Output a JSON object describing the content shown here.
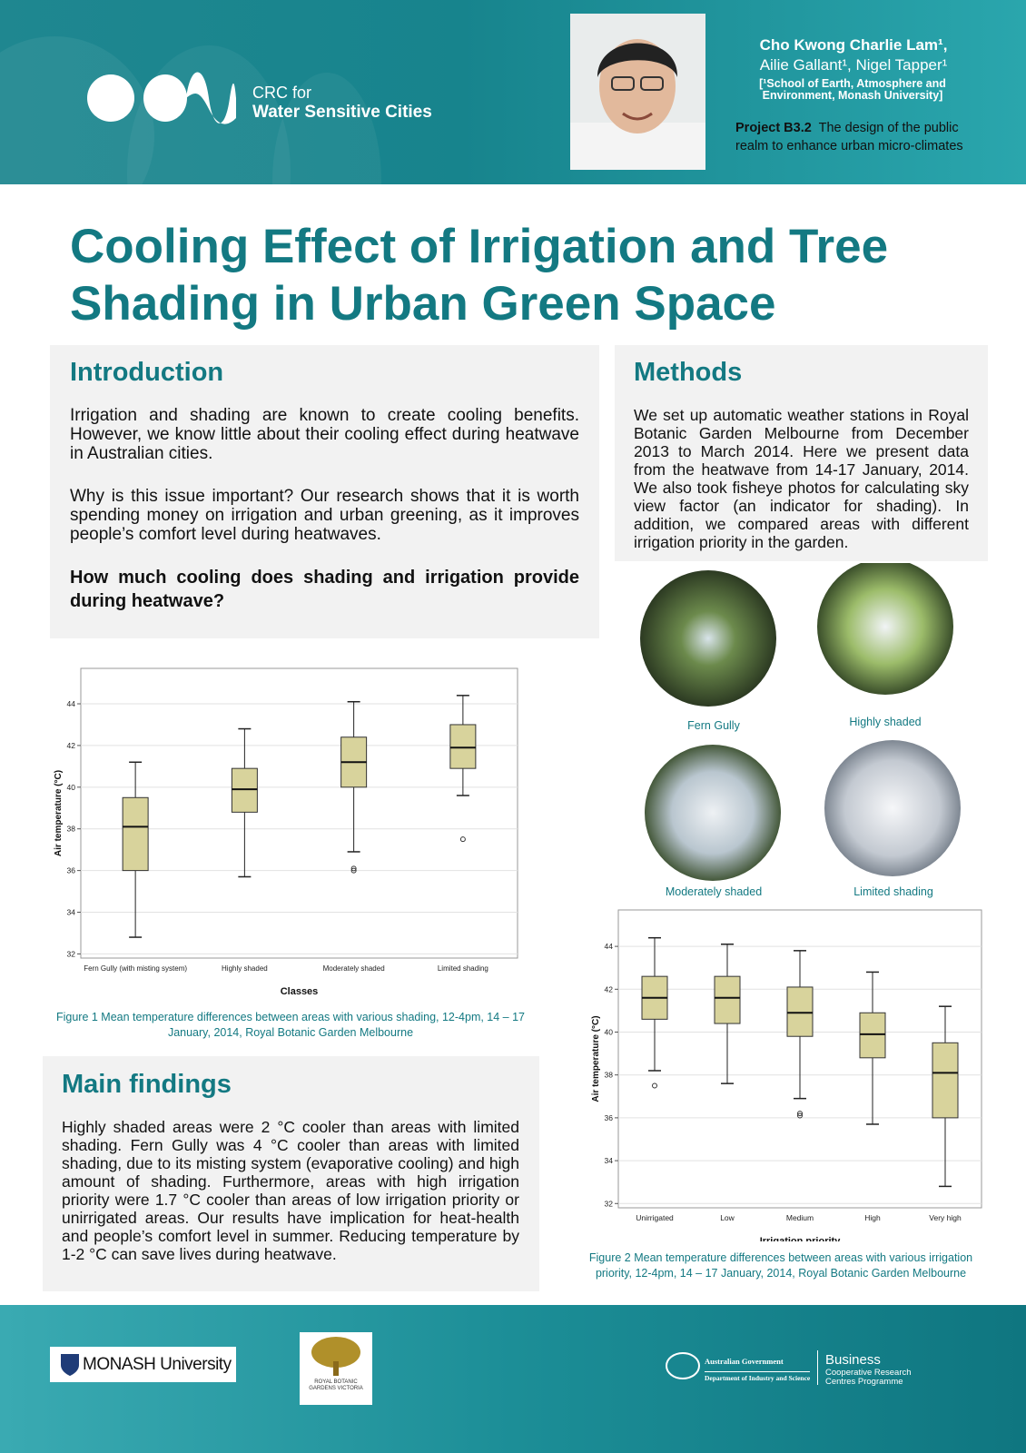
{
  "header": {
    "org_line1": "CRC for",
    "org_line2": "Water Sensitive Cities",
    "authors_line1": "Cho Kwong Charlie Lam¹,",
    "authors_line2": "Ailie Gallant¹, Nigel Tapper¹",
    "affiliation": "[¹School of Earth, Atmosphere and Environment, Monash University]",
    "project_label": "Project B3.2",
    "project_text": "The design of the public realm to enhance urban micro-climates"
  },
  "title": "Cooling Effect of Irrigation and Tree Shading in Urban Green Space",
  "introduction": {
    "heading": "Introduction",
    "paragraphs": [
      "Irrigation and shading are known to create cooling benefits. However, we know little about their cooling effect during heatwave in Australian cities.",
      "Why is this issue important? Our research shows that it is worth spending money on irrigation and urban greening, as it improves people’s comfort level during heatwaves."
    ],
    "question": "How much cooling does shading and irrigation provide during heatwave?"
  },
  "methods": {
    "heading": "Methods",
    "text": "We set up automatic weather stations in Royal Botanic Garden Melbourne from December 2013 to March 2014. Here we present data from the heatwave from 14-17 January, 2014. We also took fisheye photos for calculating sky view factor (an indicator for shading). In addition, we compared areas with different irrigation priority in the garden."
  },
  "photos": {
    "labels": [
      "Fern Gully",
      "Highly shaded",
      "Moderately shaded",
      "Limited shading"
    ]
  },
  "chart_data": [
    {
      "type": "box",
      "x_label": "Classes",
      "y_label": "Air temperature (°C)",
      "categories": [
        "Fern Gully (with misting system)",
        "Highly shaded",
        "Moderately shaded",
        "Limited shading"
      ],
      "boxes": [
        {
          "whislo": 32.8,
          "q1": 36.0,
          "med": 38.1,
          "q3": 39.5,
          "whishi": 41.2,
          "fliers": []
        },
        {
          "whislo": 35.7,
          "q1": 38.8,
          "med": 39.9,
          "q3": 40.9,
          "whishi": 42.8,
          "fliers": []
        },
        {
          "whislo": 36.9,
          "q1": 40.0,
          "med": 41.2,
          "q3": 42.4,
          "whishi": 44.1,
          "fliers": [
            36.0,
            36.1
          ]
        },
        {
          "whislo": 39.6,
          "q1": 40.9,
          "med": 41.9,
          "q3": 43.0,
          "whishi": 44.4,
          "fliers": [
            37.5
          ]
        }
      ],
      "color": "#d8d39c",
      "ylim": [
        31.8,
        45.7
      ],
      "yticks": [
        32,
        34,
        36,
        38,
        40,
        42,
        44
      ],
      "grid": true,
      "caption": "Figure 1 Mean temperature differences between areas with various shading, 12-4pm, 14 – 17 January, 2014, Royal Botanic Garden Melbourne"
    },
    {
      "type": "box",
      "x_label": "Irrigation priority",
      "y_label": "Air temperature (°C)",
      "categories": [
        "Unirrigated",
        "Low",
        "Medium",
        "High",
        "Very high"
      ],
      "boxes": [
        {
          "whislo": 38.2,
          "q1": 40.6,
          "med": 41.6,
          "q3": 42.6,
          "whishi": 44.4,
          "fliers": [
            37.5
          ]
        },
        {
          "whislo": 37.6,
          "q1": 40.4,
          "med": 41.6,
          "q3": 42.6,
          "whishi": 44.1,
          "fliers": []
        },
        {
          "whislo": 36.9,
          "q1": 39.8,
          "med": 40.9,
          "q3": 42.1,
          "whishi": 43.8,
          "fliers": [
            36.1,
            36.2
          ]
        },
        {
          "whislo": 35.7,
          "q1": 38.8,
          "med": 39.9,
          "q3": 40.9,
          "whishi": 42.8,
          "fliers": []
        },
        {
          "whislo": 32.8,
          "q1": 36.0,
          "med": 38.1,
          "q3": 39.5,
          "whishi": 41.2,
          "fliers": []
        }
      ],
      "color": "#d8d39c",
      "ylim": [
        31.8,
        45.7
      ],
      "yticks": [
        32,
        34,
        36,
        38,
        40,
        42,
        44
      ],
      "grid": true,
      "caption": "Figure 2 Mean temperature differences between areas with various irrigation priority, 12-4pm, 14 – 17 January, 2014, Royal Botanic Garden Melbourne"
    }
  ],
  "main_findings": {
    "heading": "Main findings",
    "text": "Highly shaded areas were 2 °C cooler than areas with limited shading. Fern Gully was 4 °C cooler than areas with limited shading, due to its misting system (evaporative cooling) and high amount of shading. Furthermore, areas with high irrigation priority were 1.7 °C cooler than areas of low irrigation priority or unirrigated areas. Our results have implication for heat-health and people’s comfort level in summer. Reducing temperature by 1-2 °C can save lives during heatwave."
  },
  "footer": {
    "monash": "MONASH University",
    "rbg": "ROYAL BOTANIC GARDENS VICTORIA",
    "gov_line1": "Australian Government",
    "gov_line2": "Department of Industry and Science",
    "crc_line1": "Business",
    "crc_line2": "Cooperative Research Centres Programme"
  }
}
